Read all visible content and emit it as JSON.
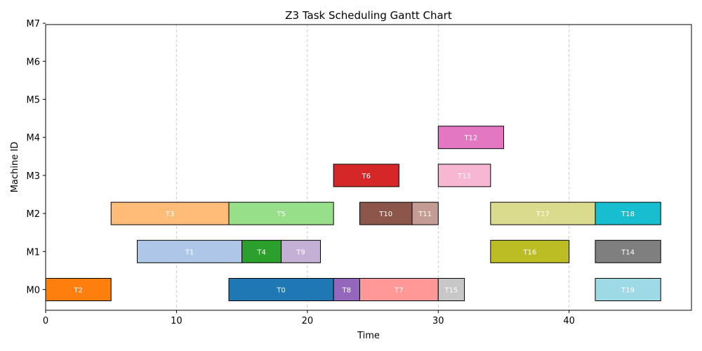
{
  "chart_data": {
    "type": "gantt",
    "title": "Z3 Task Scheduling Gantt Chart",
    "xlabel": "Time",
    "ylabel": "Machine ID",
    "xlim": [
      0,
      49.35
    ],
    "xticks": [
      0,
      10,
      20,
      30,
      40
    ],
    "machines": [
      "M0",
      "M1",
      "M2",
      "M3",
      "M4",
      "M5",
      "M6",
      "M7"
    ],
    "grid": "vertical dashed",
    "tasks": [
      {
        "name": "T0",
        "machine": "M0",
        "start": 14,
        "end": 22,
        "color": "#1f77b4"
      },
      {
        "name": "T1",
        "machine": "M1",
        "start": 7,
        "end": 15,
        "color": "#aec7e8"
      },
      {
        "name": "T2",
        "machine": "M0",
        "start": 0,
        "end": 5,
        "color": "#ff7f0e"
      },
      {
        "name": "T3",
        "machine": "M2",
        "start": 5,
        "end": 14,
        "color": "#ffbb78"
      },
      {
        "name": "T4",
        "machine": "M1",
        "start": 15,
        "end": 18,
        "color": "#2ca02c"
      },
      {
        "name": "T5",
        "machine": "M2",
        "start": 14,
        "end": 22,
        "color": "#98df8a"
      },
      {
        "name": "T6",
        "machine": "M3",
        "start": 22,
        "end": 27,
        "color": "#d62728"
      },
      {
        "name": "T7",
        "machine": "M0",
        "start": 24,
        "end": 30,
        "color": "#ff9896"
      },
      {
        "name": "T8",
        "machine": "M0",
        "start": 22,
        "end": 24,
        "color": "#9467bd"
      },
      {
        "name": "T9",
        "machine": "M1",
        "start": 18,
        "end": 21,
        "color": "#c5b0d5"
      },
      {
        "name": "T10",
        "machine": "M2",
        "start": 24,
        "end": 28,
        "color": "#8c564b"
      },
      {
        "name": "T11",
        "machine": "M2",
        "start": 28,
        "end": 30,
        "color": "#c49c94"
      },
      {
        "name": "T12",
        "machine": "M4",
        "start": 30,
        "end": 35,
        "color": "#e377c2"
      },
      {
        "name": "T13",
        "machine": "M3",
        "start": 30,
        "end": 34,
        "color": "#f7b6d2"
      },
      {
        "name": "T14",
        "machine": "M1",
        "start": 42,
        "end": 47,
        "color": "#7f7f7f"
      },
      {
        "name": "T15",
        "machine": "M0",
        "start": 30,
        "end": 32,
        "color": "#c7c7c7"
      },
      {
        "name": "T16",
        "machine": "M1",
        "start": 34,
        "end": 40,
        "color": "#bcbd22"
      },
      {
        "name": "T17",
        "machine": "M2",
        "start": 34,
        "end": 42,
        "color": "#dbdb8d"
      },
      {
        "name": "T18",
        "machine": "M2",
        "start": 42,
        "end": 47,
        "color": "#17becf"
      },
      {
        "name": "T19",
        "machine": "M0",
        "start": 42,
        "end": 47,
        "color": "#9edae5"
      }
    ]
  }
}
